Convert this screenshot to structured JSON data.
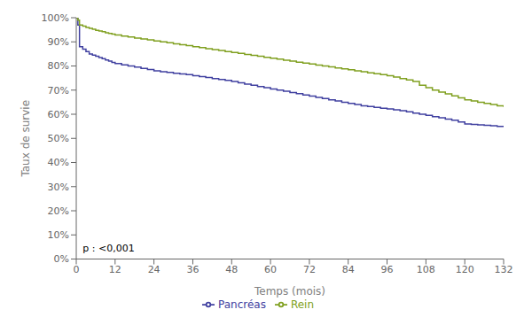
{
  "chart_data": {
    "type": "step",
    "xlabel": "Temps (mois)",
    "ylabel": "Taux de survie",
    "annotation": {
      "text": "p : <0,001",
      "x": 2,
      "y": 0.03
    },
    "xlim": [
      0,
      132
    ],
    "ylim": [
      0,
      1.0
    ],
    "xticks": [
      0,
      12,
      24,
      36,
      48,
      60,
      72,
      84,
      96,
      108,
      120,
      132
    ],
    "yticks": [
      {
        "value": 0.0,
        "label": "0%"
      },
      {
        "value": 0.1,
        "label": "10%"
      },
      {
        "value": 0.2,
        "label": "20%"
      },
      {
        "value": 0.3,
        "label": "30%"
      },
      {
        "value": 0.4,
        "label": "40%"
      },
      {
        "value": 0.5,
        "label": "50%"
      },
      {
        "value": 0.6,
        "label": "60%"
      },
      {
        "value": 0.7,
        "label": "70%"
      },
      {
        "value": 0.8,
        "label": "80%"
      },
      {
        "value": 0.9,
        "label": "90%"
      },
      {
        "value": 1.0,
        "label": "100%"
      }
    ],
    "grid": false,
    "legend": "bottom",
    "x": [
      0,
      0.5,
      1,
      2,
      3,
      4,
      5,
      6,
      7,
      8,
      9,
      10,
      11,
      12,
      14,
      16,
      18,
      20,
      22,
      24,
      26,
      28,
      30,
      32,
      34,
      36,
      38,
      40,
      42,
      44,
      46,
      48,
      50,
      52,
      54,
      56,
      58,
      60,
      62,
      64,
      66,
      68,
      70,
      72,
      74,
      76,
      78,
      80,
      82,
      84,
      86,
      88,
      90,
      92,
      94,
      96,
      98,
      100,
      102,
      104,
      106,
      108,
      110,
      112,
      114,
      116,
      118,
      120,
      122,
      124,
      126,
      128,
      130,
      132
    ],
    "series": [
      {
        "name": "Pancréas",
        "color": "#4040A0",
        "values": [
          1.0,
          0.97,
          0.88,
          0.87,
          0.86,
          0.85,
          0.845,
          0.84,
          0.835,
          0.83,
          0.825,
          0.82,
          0.815,
          0.81,
          0.805,
          0.8,
          0.795,
          0.79,
          0.785,
          0.78,
          0.776,
          0.773,
          0.77,
          0.767,
          0.764,
          0.76,
          0.756,
          0.752,
          0.748,
          0.744,
          0.74,
          0.736,
          0.73,
          0.725,
          0.72,
          0.715,
          0.71,
          0.705,
          0.7,
          0.695,
          0.69,
          0.685,
          0.68,
          0.675,
          0.67,
          0.665,
          0.66,
          0.655,
          0.65,
          0.645,
          0.64,
          0.635,
          0.632,
          0.628,
          0.625,
          0.622,
          0.618,
          0.615,
          0.61,
          0.605,
          0.6,
          0.595,
          0.59,
          0.585,
          0.58,
          0.575,
          0.568,
          0.56,
          0.558,
          0.556,
          0.554,
          0.552,
          0.55,
          0.548
        ]
      },
      {
        "name": "Rein",
        "color": "#80A020",
        "values": [
          1.0,
          0.99,
          0.97,
          0.965,
          0.96,
          0.956,
          0.952,
          0.948,
          0.945,
          0.942,
          0.938,
          0.935,
          0.932,
          0.928,
          0.924,
          0.92,
          0.916,
          0.912,
          0.908,
          0.904,
          0.9,
          0.896,
          0.892,
          0.888,
          0.884,
          0.88,
          0.876,
          0.872,
          0.868,
          0.864,
          0.86,
          0.856,
          0.852,
          0.848,
          0.844,
          0.84,
          0.836,
          0.832,
          0.828,
          0.824,
          0.82,
          0.816,
          0.812,
          0.808,
          0.804,
          0.8,
          0.796,
          0.792,
          0.788,
          0.784,
          0.78,
          0.776,
          0.772,
          0.768,
          0.764,
          0.76,
          0.754,
          0.748,
          0.742,
          0.736,
          0.72,
          0.71,
          0.7,
          0.692,
          0.684,
          0.676,
          0.668,
          0.66,
          0.655,
          0.65,
          0.645,
          0.64,
          0.635,
          0.63
        ]
      }
    ]
  }
}
